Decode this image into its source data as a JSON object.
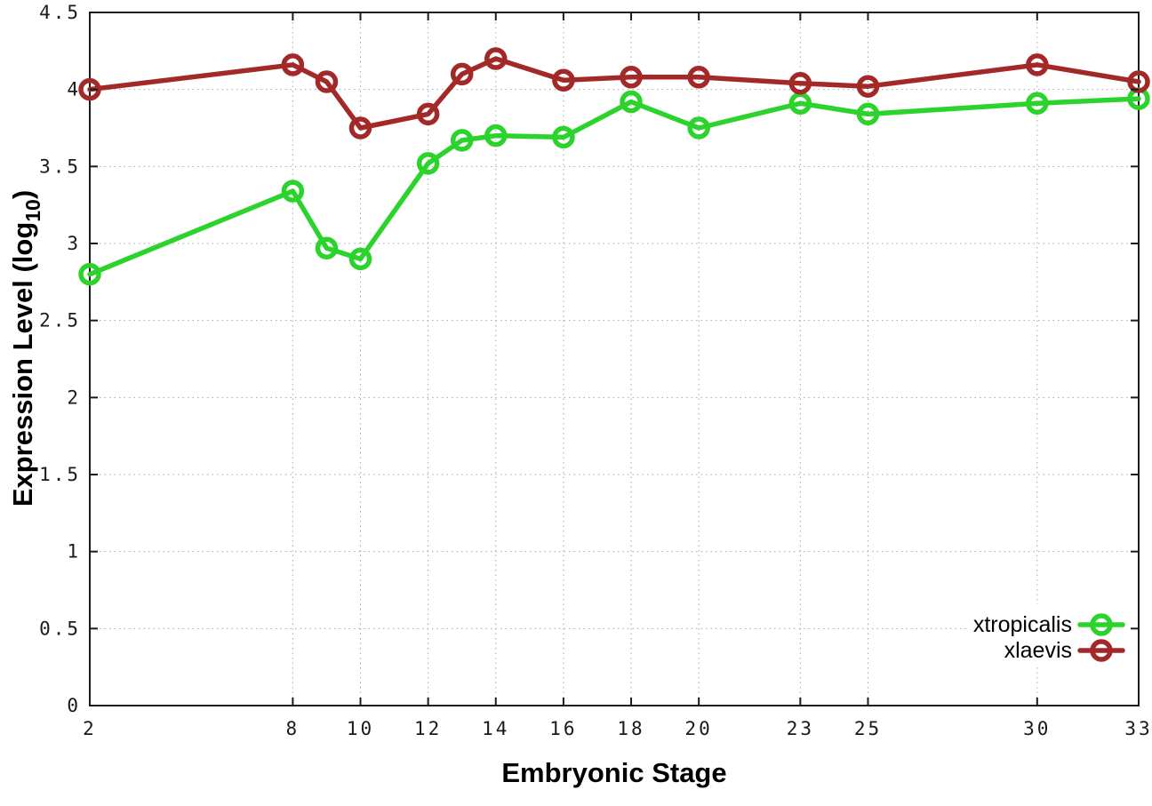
{
  "figure": {
    "background": "#ffffff",
    "xlabel": "Embryonic Stage",
    "ylabel_prefix": "Expression Level (log",
    "ylabel_sub": "10",
    "ylabel_suffix": ")",
    "border_color": "#1c1c1c",
    "grid_color": "#a8a8a8"
  },
  "chart_data": {
    "type": "line",
    "title": "",
    "xlabel": "Embryonic Stage",
    "ylabel": "Expression Level (log10)",
    "x": [
      2,
      8,
      9,
      10,
      12,
      13,
      14,
      16,
      18,
      20,
      23,
      25,
      30,
      33
    ],
    "series": [
      {
        "name": "xtropicalis",
        "color": "#2cd32c",
        "marker": "open-circle",
        "values": [
          2.8,
          3.34,
          2.97,
          2.9,
          3.52,
          3.67,
          3.7,
          3.69,
          3.92,
          3.75,
          3.91,
          3.84,
          3.91,
          3.94
        ]
      },
      {
        "name": "xlaevis",
        "color": "#a32929",
        "marker": "open-circle",
        "values": [
          4.0,
          4.16,
          4.05,
          3.75,
          3.84,
          4.1,
          4.2,
          4.06,
          4.08,
          4.08,
          4.04,
          4.02,
          4.16,
          4.05
        ]
      }
    ],
    "xticks": [
      2,
      8,
      10,
      12,
      14,
      16,
      18,
      20,
      23,
      25,
      30,
      33
    ],
    "yticks": [
      0,
      0.5,
      1,
      1.5,
      2,
      2.5,
      3,
      3.5,
      4,
      4.5
    ],
    "xlim": [
      2,
      33
    ],
    "ylim": [
      0,
      4.5
    ],
    "grid": true,
    "legend_position": "bottom-right"
  }
}
